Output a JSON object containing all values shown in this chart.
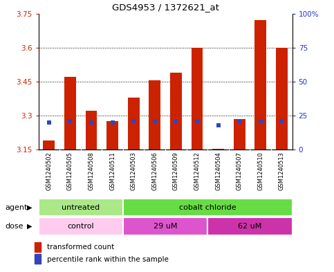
{
  "title": "GDS4953 / 1372621_at",
  "samples": [
    "GSM1240502",
    "GSM1240505",
    "GSM1240508",
    "GSM1240511",
    "GSM1240503",
    "GSM1240506",
    "GSM1240509",
    "GSM1240512",
    "GSM1240504",
    "GSM1240507",
    "GSM1240510",
    "GSM1240513"
  ],
  "transformed_count": [
    3.19,
    3.47,
    3.32,
    3.275,
    3.38,
    3.455,
    3.49,
    3.6,
    3.155,
    3.285,
    3.72,
    3.6
  ],
  "percentile_rank": [
    20,
    21,
    20,
    20,
    21,
    21,
    21,
    21,
    18,
    21,
    21,
    21
  ],
  "baseline": 3.15,
  "ylim": [
    3.15,
    3.75
  ],
  "right_ylim": [
    0,
    100
  ],
  "yticks_left": [
    3.15,
    3.3,
    3.45,
    3.6,
    3.75
  ],
  "yticks_left_labels": [
    "3.15",
    "3.3",
    "3.45",
    "3.6",
    "3.75"
  ],
  "yticks_right": [
    0,
    25,
    50,
    75,
    100
  ],
  "yticks_right_labels": [
    "0",
    "25",
    "50",
    "75",
    "100%"
  ],
  "bar_color": "#cc2200",
  "blue_color": "#3344bb",
  "grid_yticks": [
    3.3,
    3.45,
    3.6
  ],
  "agent_groups": [
    {
      "label": "untreated",
      "start": 0,
      "end": 4,
      "color": "#aae888"
    },
    {
      "label": "cobalt chloride",
      "start": 4,
      "end": 12,
      "color": "#66dd44"
    }
  ],
  "dose_groups": [
    {
      "label": "control",
      "start": 0,
      "end": 4,
      "color": "#ffccee"
    },
    {
      "label": "29 uM",
      "start": 4,
      "end": 8,
      "color": "#dd55cc"
    },
    {
      "label": "62 uM",
      "start": 8,
      "end": 12,
      "color": "#cc33aa"
    }
  ],
  "xlabel_agent": "agent",
  "xlabel_dose": "dose",
  "legend_red": "transformed count",
  "legend_blue": "percentile rank within the sample",
  "bg_color": "#c8c8c8",
  "plot_bg": "#ffffff"
}
